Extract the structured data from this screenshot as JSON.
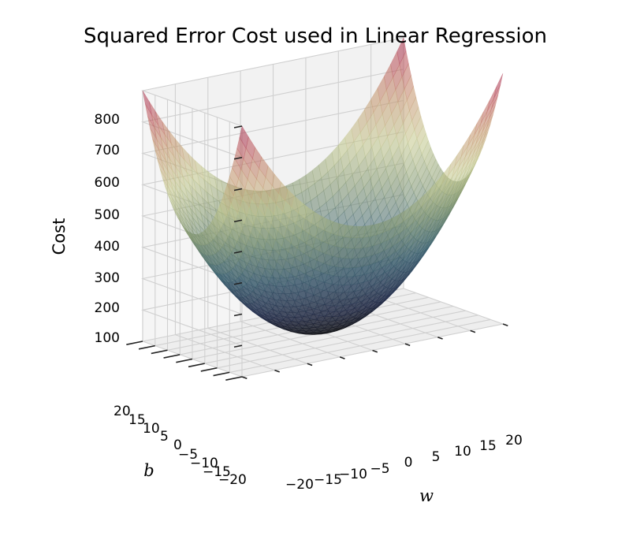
{
  "chart_data": {
    "type": "surface",
    "title": "Squared Error Cost used in Linear Regression",
    "xlabel": "w",
    "ylabel": "b",
    "zlabel": "Cost",
    "x_ticks": [
      "−20",
      "−15",
      "−10",
      "−5",
      "0",
      "5",
      "10",
      "15",
      "20"
    ],
    "y_ticks": [
      "20",
      "15",
      "10",
      "5",
      "0",
      "−5",
      "−10",
      "−15",
      "−20"
    ],
    "z_ticks": [
      "100",
      "200",
      "300",
      "400",
      "500",
      "600",
      "700",
      "800"
    ],
    "xlim": [
      -20,
      20
    ],
    "ylim": [
      -20,
      20
    ],
    "zlim": [
      0,
      800
    ],
    "function": "cost = (w^2 + b^2) / 1",
    "grid": true,
    "colormap": "spectral-dark"
  }
}
